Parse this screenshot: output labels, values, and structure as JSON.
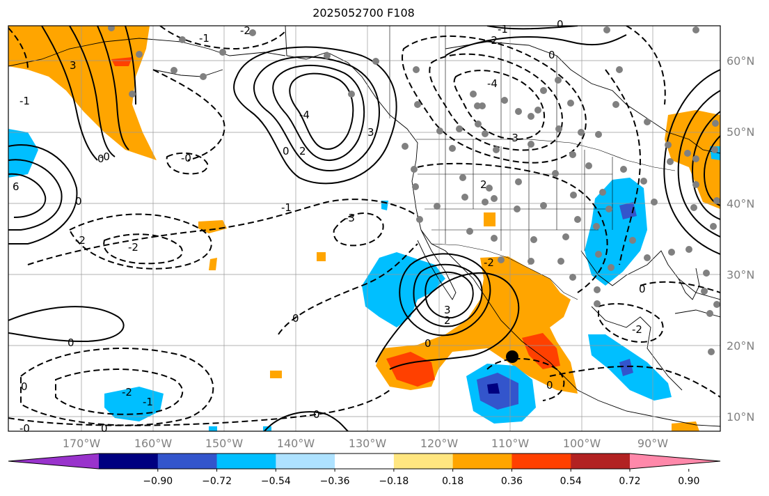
{
  "title": "2025052700 F108",
  "lat_labels": [
    "60°N",
    "50°N",
    "40°N",
    "30°N",
    "20°N",
    "10°N"
  ],
  "lon_labels": [
    "170°W",
    "160°W",
    "150°W",
    "140°W",
    "130°W",
    "120°W",
    "110°W",
    "100°W",
    "90°W"
  ],
  "colorbar": {
    "ticks": [
      "−0.90",
      "−0.72",
      "−0.54",
      "−0.36",
      "−0.18",
      "0.18",
      "0.36",
      "0.54",
      "0.72",
      "0.90"
    ],
    "colors": [
      "#9933cc",
      "#000080",
      "#3355cc",
      "#00bfff",
      "#aee2ff",
      "#ffffff",
      "#ffe680",
      "#ffa500",
      "#ff4000",
      "#b22222",
      "#ff88aa"
    ]
  },
  "contour_labels": {
    "c1": "-1",
    "c2": "-2",
    "c3": "0",
    "c4": "3",
    "c5": "3",
    "c6": "2",
    "c7": "-4",
    "c8": "0",
    "c9": "-4",
    "c10": "-3",
    "c11": "2",
    "c12": "-0",
    "c13": "0",
    "c14": "0",
    "c15": "-2",
    "c16": "-2",
    "c17": "-1",
    "c18": "0",
    "c19": "-3",
    "c20": "-2",
    "c21": "0",
    "c22": "3",
    "c23": "2",
    "c24": "0",
    "c25": "-2",
    "c26": "-1",
    "c27": "0",
    "c28": "-0",
    "c29": "0",
    "c30": "0",
    "c31": "0",
    "c32": "0",
    "c33": "-2",
    "c34": "-1",
    "c35": "6",
    "c36": "-2",
    "c37": "-1",
    "c38": "-0",
    "c39": "0"
  }
}
